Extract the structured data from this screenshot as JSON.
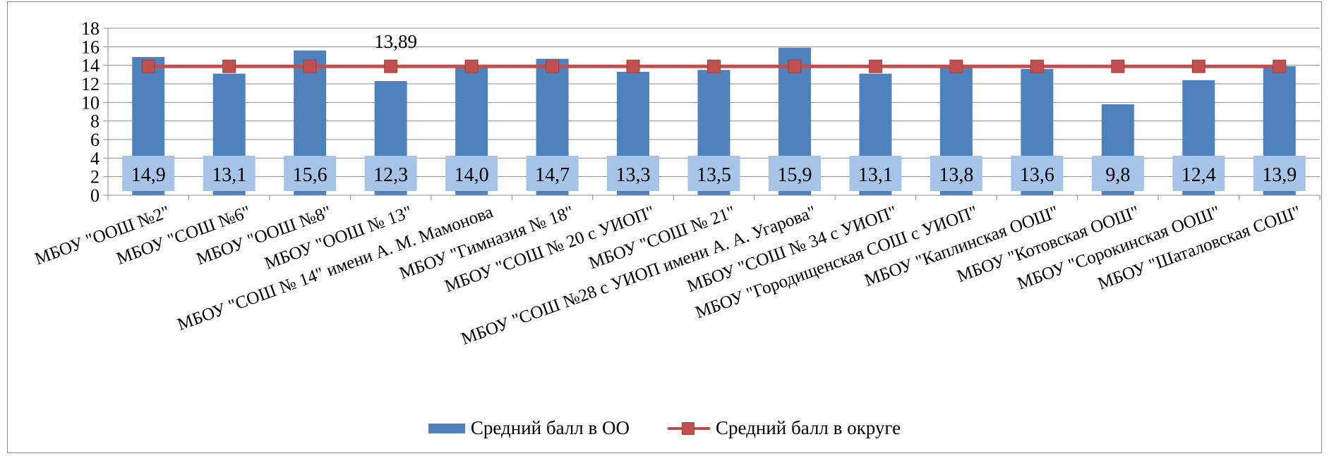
{
  "chart_data": {
    "type": "bar",
    "categories": [
      "МБОУ \"ООШ №2\"",
      "МБОУ \"СОШ №6\"",
      "МБОУ \"ООШ №8\"",
      "МБОУ \"ООШ № 13\"",
      "МБОУ \"СОШ № 14\" имени А. М. Мамонова",
      "МБОУ \"Гимназия № 18\"",
      "МБОУ \"СОШ № 20 с УИОП\"",
      "МБОУ \"СОШ № 21\"",
      "МБОУ \"СОШ №28 с УИОП имени А. А. Угарова\"",
      "МБОУ \"СОШ № 34 с УИОП\"",
      "МБОУ \"Городищенская СОШ с УИОП\"",
      "МБОУ \"Каплинская ООШ\"",
      "МБОУ \"Котовская ООШ\"",
      "МБОУ \"Сорокинская ООШ\"",
      "МБОУ \"Шаталовская СОШ\""
    ],
    "series": [
      {
        "name": "Средний балл в ОО",
        "kind": "bar",
        "color": "#4f81bd",
        "values": [
          14.9,
          13.1,
          15.6,
          12.3,
          14.0,
          14.7,
          13.3,
          13.5,
          15.9,
          13.1,
          13.8,
          13.6,
          9.8,
          12.4,
          13.9
        ],
        "labels": [
          "14,9",
          "13,1",
          "15,6",
          "12,3",
          "14,0",
          "14,7",
          "13,3",
          "13,5",
          "15,9",
          "13,1",
          "13,8",
          "13,6",
          "9,8",
          "12,4",
          "13,9"
        ]
      },
      {
        "name": "Средний балл в округе",
        "kind": "line",
        "color": "#c0504d",
        "values": [
          13.89,
          13.89,
          13.89,
          13.89,
          13.89,
          13.89,
          13.89,
          13.89,
          13.89,
          13.89,
          13.89,
          13.89,
          13.89,
          13.89,
          13.89
        ],
        "annotation": "13,89"
      }
    ],
    "yticks": [
      "0",
      "2",
      "4",
      "6",
      "8",
      "10",
      "12",
      "14",
      "16",
      "18"
    ],
    "ylim": [
      0,
      18
    ],
    "grid": true,
    "legend_position": "bottom"
  }
}
